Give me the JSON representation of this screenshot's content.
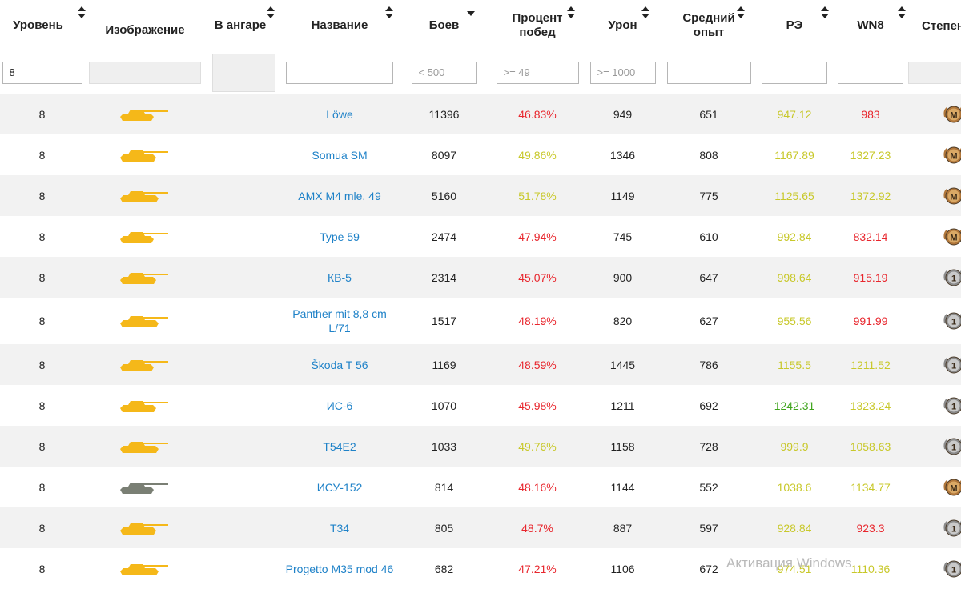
{
  "columns": [
    {
      "key": "level",
      "label_lines": [
        "Уровень"
      ],
      "sort": "both"
    },
    {
      "key": "image",
      "label_lines": [
        "Изображение"
      ],
      "sort": null
    },
    {
      "key": "garage",
      "label_lines": [
        "В ангаре"
      ],
      "sort": "both"
    },
    {
      "key": "name",
      "label_lines": [
        "Название"
      ],
      "sort": "both"
    },
    {
      "key": "battles",
      "label_lines": [
        "Боев"
      ],
      "sort": "desc"
    },
    {
      "key": "winrate",
      "label_lines": [
        "Процент",
        "побед"
      ],
      "sort": "both"
    },
    {
      "key": "damage",
      "label_lines": [
        "Урон"
      ],
      "sort": "both"
    },
    {
      "key": "avgxp",
      "label_lines": [
        "Средний",
        "опыт"
      ],
      "sort": "both"
    },
    {
      "key": "re",
      "label_lines": [
        "РЭ"
      ],
      "sort": "both"
    },
    {
      "key": "wn8",
      "label_lines": [
        "WN8"
      ],
      "sort": "both"
    },
    {
      "key": "mastery",
      "label_lines": [
        "Степень"
      ],
      "sort": null
    }
  ],
  "filters": {
    "level": {
      "value": "8",
      "placeholder": ""
    },
    "name": {
      "value": "",
      "placeholder": ""
    },
    "battles": {
      "value": "",
      "placeholder": "< 500"
    },
    "winrate": {
      "value": "",
      "placeholder": ">= 49"
    },
    "damage": {
      "value": "",
      "placeholder": ">= 1000"
    },
    "avgxp": {
      "value": "",
      "placeholder": ""
    },
    "re": {
      "value": "",
      "placeholder": ""
    },
    "wn8": {
      "value": "",
      "placeholder": ""
    }
  },
  "colors": {
    "red": "#e8262d",
    "yellow": "#c8c82a",
    "green": "#3fa41c",
    "link": "#1f82c8",
    "tank_gold": "#f5b819",
    "tank_gray": "#7a7f74",
    "medal_bronze": "#b0763a",
    "medal_silver": "#8a8a8a"
  },
  "rows": [
    {
      "level": "8",
      "name_lines": [
        "Löwe"
      ],
      "battles": "11396",
      "winrate": "46.83%",
      "winrate_color": "red",
      "damage": "949",
      "avgxp": "651",
      "re": "947.12",
      "re_color": "yellow",
      "wn8": "983",
      "wn8_color": "red",
      "tank_icon": "tank-gold-icon",
      "medal": "M",
      "medal_type": "bronze"
    },
    {
      "level": "8",
      "name_lines": [
        "Somua SM"
      ],
      "battles": "8097",
      "winrate": "49.86%",
      "winrate_color": "yellow",
      "damage": "1346",
      "avgxp": "808",
      "re": "1167.89",
      "re_color": "yellow",
      "wn8": "1327.23",
      "wn8_color": "yellow",
      "tank_icon": "tank-gold-icon",
      "medal": "M",
      "medal_type": "bronze"
    },
    {
      "level": "8",
      "name_lines": [
        "AMX M4 mle. 49"
      ],
      "battles": "5160",
      "winrate": "51.78%",
      "winrate_color": "yellow",
      "damage": "1149",
      "avgxp": "775",
      "re": "1125.65",
      "re_color": "yellow",
      "wn8": "1372.92",
      "wn8_color": "yellow",
      "tank_icon": "tank-gold-icon",
      "medal": "M",
      "medal_type": "bronze"
    },
    {
      "level": "8",
      "name_lines": [
        "Type 59"
      ],
      "battles": "2474",
      "winrate": "47.94%",
      "winrate_color": "red",
      "damage": "745",
      "avgxp": "610",
      "re": "992.84",
      "re_color": "yellow",
      "wn8": "832.14",
      "wn8_color": "red",
      "tank_icon": "tank-gold-icon",
      "medal": "M",
      "medal_type": "bronze"
    },
    {
      "level": "8",
      "name_lines": [
        "КВ-5"
      ],
      "battles": "2314",
      "winrate": "45.07%",
      "winrate_color": "red",
      "damage": "900",
      "avgxp": "647",
      "re": "998.64",
      "re_color": "yellow",
      "wn8": "915.19",
      "wn8_color": "red",
      "tank_icon": "tank-gold-icon",
      "medal": "1",
      "medal_type": "silver"
    },
    {
      "level": "8",
      "name_lines": [
        "Panther mit 8,8 cm",
        "L/71"
      ],
      "battles": "1517",
      "winrate": "48.19%",
      "winrate_color": "red",
      "damage": "820",
      "avgxp": "627",
      "re": "955.56",
      "re_color": "yellow",
      "wn8": "991.99",
      "wn8_color": "red",
      "tank_icon": "tank-gold-icon",
      "medal": "1",
      "medal_type": "silver"
    },
    {
      "level": "8",
      "name_lines": [
        "Škoda T 56"
      ],
      "battles": "1169",
      "winrate": "48.59%",
      "winrate_color": "red",
      "damage": "1445",
      "avgxp": "786",
      "re": "1155.5",
      "re_color": "yellow",
      "wn8": "1211.52",
      "wn8_color": "yellow",
      "tank_icon": "tank-gold-icon",
      "medal": "1",
      "medal_type": "silver"
    },
    {
      "level": "8",
      "name_lines": [
        "ИС-6"
      ],
      "battles": "1070",
      "winrate": "45.98%",
      "winrate_color": "red",
      "damage": "1211",
      "avgxp": "692",
      "re": "1242.31",
      "re_color": "green",
      "wn8": "1323.24",
      "wn8_color": "yellow",
      "tank_icon": "tank-gold-icon",
      "medal": "1",
      "medal_type": "silver"
    },
    {
      "level": "8",
      "name_lines": [
        "T54E2"
      ],
      "battles": "1033",
      "winrate": "49.76%",
      "winrate_color": "yellow",
      "damage": "1158",
      "avgxp": "728",
      "re": "999.9",
      "re_color": "yellow",
      "wn8": "1058.63",
      "wn8_color": "yellow",
      "tank_icon": "tank-gold-icon",
      "medal": "1",
      "medal_type": "silver"
    },
    {
      "level": "8",
      "name_lines": [
        "ИСУ-152"
      ],
      "battles": "814",
      "winrate": "48.16%",
      "winrate_color": "red",
      "damage": "1144",
      "avgxp": "552",
      "re": "1038.6",
      "re_color": "yellow",
      "wn8": "1134.77",
      "wn8_color": "yellow",
      "tank_icon": "tank-gray-icon",
      "medal": "M",
      "medal_type": "bronze"
    },
    {
      "level": "8",
      "name_lines": [
        "T34"
      ],
      "battles": "805",
      "winrate": "48.7%",
      "winrate_color": "red",
      "damage": "887",
      "avgxp": "597",
      "re": "928.84",
      "re_color": "yellow",
      "wn8": "923.3",
      "wn8_color": "red",
      "tank_icon": "tank-gold-icon",
      "medal": "1",
      "medal_type": "silver"
    },
    {
      "level": "8",
      "name_lines": [
        "Progetto M35 mod 46"
      ],
      "battles": "682",
      "winrate": "47.21%",
      "winrate_color": "red",
      "damage": "1106",
      "avgxp": "672",
      "re": "974.51",
      "re_color": "yellow",
      "wn8": "1110.36",
      "wn8_color": "yellow",
      "tank_icon": "tank-gold-icon",
      "medal": "1",
      "medal_type": "silver"
    }
  ],
  "watermark": "Активация Windows"
}
